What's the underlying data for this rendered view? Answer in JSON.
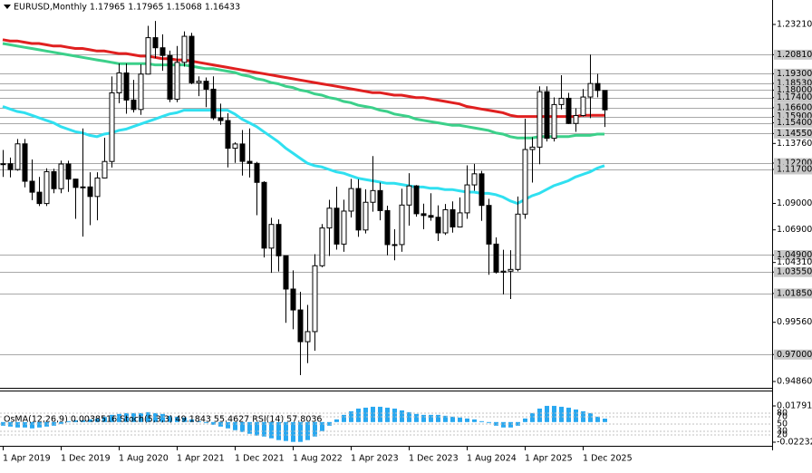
{
  "chart_data": {
    "type": "candlestick",
    "title": "EURUSD,Monthly  1.17965 1.17965 1.15068 1.16433",
    "categories": [
      "1 Apr 2019",
      null,
      null,
      null,
      null,
      null,
      null,
      null,
      "1 Dec 2019",
      null,
      null,
      null,
      null,
      null,
      null,
      null,
      "1 Aug 2020",
      null,
      null,
      null,
      null,
      null,
      null,
      null,
      "1 Apr 2021",
      null,
      null,
      null,
      null,
      null,
      null,
      null,
      "1 Dec 2021",
      null,
      null,
      null,
      null,
      null,
      null,
      null,
      "1 Aug 2022",
      null,
      null,
      null,
      null,
      null,
      null,
      null,
      "1 Apr 2023",
      null,
      null,
      null,
      null,
      null,
      null,
      null,
      "1 Dec 2023",
      null,
      null,
      null,
      null,
      null,
      null,
      null,
      "1 Aug 2024",
      null,
      null,
      null,
      null,
      null,
      null,
      null,
      "1 Apr 2025",
      null,
      null,
      null,
      null,
      null,
      null,
      null,
      "1 Dec 2025",
      null,
      null,
      null
    ],
    "open": [
      1.1214,
      1.1215,
      1.1169,
      1.1373,
      1.1076,
      1.0989,
      1.0899,
      1.1152,
      1.1017,
      1.1213,
      1.1093,
      1.1027,
      1.1031,
      1.0955,
      1.1102,
      1.1233,
      1.1778,
      1.1936,
      1.1721,
      1.1646,
      1.1927,
      1.2216,
      1.2136,
      1.2075,
      1.1728,
      1.202,
      1.2227,
      1.1858,
      1.187,
      1.1807,
      1.1579,
      1.1558,
      1.1338,
      1.1372,
      1.1234,
      1.1218,
      1.1067,
      1.0545,
      1.0733,
      1.0484,
      1.022,
      1.0054,
      0.9802,
      0.9882,
      1.0405,
      1.0705,
      1.0862,
      1.0577,
      1.0839,
      1.1018,
      1.0689,
      1.0909,
      1.1002,
      1.0843,
      1.0573,
      1.0573,
      1.0887,
      1.1039,
      1.0818,
      1.0804,
      1.079,
      1.0666,
      1.085,
      1.0713,
      1.0825,
      1.1047,
      1.1135,
      1.0884,
      1.0577,
      1.0354,
      1.0362,
      1.0376,
      1.0815,
      1.1328,
      1.1347,
      1.1787,
      1.1417,
      1.1685,
      1.1735,
      1.1535,
      1.1598,
      1.1745,
      1.1852,
      1.17965
    ],
    "high": [
      1.1324,
      1.1264,
      1.1412,
      1.1412,
      1.1249,
      1.111,
      1.1179,
      1.1175,
      1.124,
      1.1239,
      1.1095,
      1.1495,
      1.1147,
      1.1147,
      1.1422,
      1.1908,
      1.2011,
      1.2011,
      1.1881,
      1.2004,
      1.231,
      1.2349,
      1.2243,
      1.2113,
      1.215,
      1.2266,
      1.2254,
      1.1909,
      1.19,
      1.1909,
      1.1692,
      1.1616,
      1.1386,
      1.1483,
      1.1495,
      1.123,
      1.1076,
      1.0786,
      1.0773,
      1.0486,
      1.0368,
      1.0198,
      1.0094,
      1.0497,
      1.0736,
      1.0929,
      1.1033,
      1.093,
      1.1095,
      1.1092,
      1.1012,
      1.1276,
      1.1065,
      1.0882,
      1.0695,
      1.1017,
      1.114,
      1.1046,
      1.0898,
      1.0981,
      1.0885,
      1.0895,
      1.0916,
      1.0948,
      1.1202,
      1.1214,
      1.1158,
      1.0937,
      1.063,
      1.0532,
      1.0528,
      1.0955,
      1.1573,
      1.1425,
      1.183,
      1.183,
      1.1742,
      1.1918,
      1.1778,
      1.1655,
      1.1808,
      1.2082,
      1.1929,
      1.17965
    ],
    "low": [
      1.111,
      1.1107,
      1.116,
      1.1028,
      1.0926,
      1.0879,
      1.0879,
      1.0981,
      1.0981,
      1.0992,
      1.0778,
      1.0636,
      1.0727,
      1.0766,
      1.11,
      1.1185,
      1.1696,
      1.1612,
      1.1622,
      1.1603,
      1.1924,
      1.2054,
      1.1953,
      1.1704,
      1.1704,
      1.1986,
      1.1847,
      1.1752,
      1.1664,
      1.1563,
      1.1524,
      1.1186,
      1.1222,
      1.1121,
      1.1106,
      1.0806,
      1.0471,
      1.0349,
      1.0359,
      0.9952,
      0.9901,
      0.9536,
      0.9632,
      0.973,
      1.0393,
      1.0483,
      1.0533,
      1.0516,
      1.0788,
      1.0635,
      1.0662,
      1.0834,
      1.0766,
      1.0488,
      1.0448,
      1.0516,
      1.0724,
      1.0795,
      1.0695,
      1.0762,
      1.0601,
      1.065,
      1.0668,
      1.0709,
      1.0778,
      1.1001,
      1.0761,
      1.0333,
      1.0343,
      1.0178,
      1.0141,
      1.036,
      1.0778,
      1.1065,
      1.1211,
      1.1392,
      1.1392,
      1.1646,
      1.153,
      1.1468,
      1.159,
      1.1577,
      1.1743,
      1.15068
    ],
    "close": [
      1.1215,
      1.1169,
      1.1373,
      1.1076,
      1.0989,
      1.0899,
      1.1152,
      1.1017,
      1.1213,
      1.1093,
      1.1027,
      1.1031,
      1.0955,
      1.1102,
      1.1233,
      1.1778,
      1.1936,
      1.1721,
      1.1646,
      1.1927,
      1.2216,
      1.2136,
      1.2075,
      1.1728,
      1.202,
      1.2227,
      1.1858,
      1.187,
      1.1807,
      1.1579,
      1.1558,
      1.1338,
      1.1372,
      1.1234,
      1.1218,
      1.1067,
      1.0545,
      1.0733,
      1.0484,
      1.022,
      1.0054,
      0.9802,
      0.9882,
      1.0405,
      1.0705,
      1.0862,
      1.0577,
      1.0839,
      1.1018,
      1.0689,
      1.0909,
      1.1002,
      1.0843,
      1.0573,
      1.0573,
      1.0887,
      1.1039,
      1.0818,
      1.0804,
      1.079,
      1.0666,
      1.085,
      1.0713,
      1.0825,
      1.1047,
      1.1135,
      1.0884,
      1.0577,
      1.0354,
      1.0362,
      1.0376,
      1.0815,
      1.1328,
      1.1347,
      1.1787,
      1.1417,
      1.1685,
      1.1735,
      1.1535,
      1.1598,
      1.1745,
      1.1852,
      1.1797,
      1.16433
    ],
    "lines": [
      {
        "color": "#e02020",
        "values": [
          1.22,
          1.219,
          1.219,
          1.218,
          1.217,
          1.217,
          1.216,
          1.215,
          1.215,
          1.214,
          1.213,
          1.213,
          1.212,
          1.211,
          1.211,
          1.21,
          1.209,
          1.209,
          1.208,
          1.207,
          1.207,
          1.206,
          1.205,
          1.205,
          1.204,
          1.204,
          1.203,
          1.202,
          1.201,
          1.2,
          1.199,
          1.198,
          1.197,
          1.196,
          1.195,
          1.194,
          1.193,
          1.192,
          1.191,
          1.19,
          1.189,
          1.188,
          1.187,
          1.186,
          1.185,
          1.184,
          1.183,
          1.182,
          1.181,
          1.18,
          1.179,
          1.178,
          1.178,
          1.177,
          1.176,
          1.176,
          1.175,
          1.174,
          1.174,
          1.173,
          1.172,
          1.171,
          1.17,
          1.169,
          1.167,
          1.166,
          1.165,
          1.164,
          1.163,
          1.162,
          1.16,
          1.159,
          1.159,
          1.159,
          1.159,
          1.159,
          1.159,
          1.159,
          1.159,
          1.159,
          1.16,
          1.16,
          1.16,
          1.16
        ]
      },
      {
        "color": "#3cd08a",
        "values": [
          1.217,
          1.216,
          1.215,
          1.214,
          1.213,
          1.212,
          1.211,
          1.21,
          1.209,
          1.208,
          1.207,
          1.206,
          1.205,
          1.204,
          1.203,
          1.202,
          1.201,
          1.201,
          1.201,
          1.201,
          1.201,
          1.2,
          1.2,
          1.2,
          1.2,
          1.2,
          1.199,
          1.198,
          1.197,
          1.197,
          1.196,
          1.195,
          1.194,
          1.192,
          1.191,
          1.189,
          1.188,
          1.186,
          1.185,
          1.183,
          1.182,
          1.18,
          1.179,
          1.177,
          1.176,
          1.174,
          1.173,
          1.171,
          1.17,
          1.168,
          1.167,
          1.166,
          1.164,
          1.163,
          1.161,
          1.16,
          1.159,
          1.157,
          1.156,
          1.155,
          1.154,
          1.153,
          1.152,
          1.152,
          1.151,
          1.15,
          1.149,
          1.148,
          1.146,
          1.145,
          1.143,
          1.142,
          1.142,
          1.142,
          1.143,
          1.143,
          1.143,
          1.143,
          1.143,
          1.144,
          1.144,
          1.144,
          1.145,
          1.145
        ]
      },
      {
        "color": "#30e0f0",
        "values": [
          1.167,
          1.165,
          1.163,
          1.162,
          1.16,
          1.158,
          1.156,
          1.154,
          1.151,
          1.149,
          1.147,
          1.146,
          1.144,
          1.143,
          1.145,
          1.146,
          1.148,
          1.149,
          1.151,
          1.153,
          1.155,
          1.157,
          1.159,
          1.161,
          1.162,
          1.164,
          1.164,
          1.164,
          1.164,
          1.164,
          1.164,
          1.164,
          1.161,
          1.157,
          1.154,
          1.151,
          1.147,
          1.143,
          1.139,
          1.134,
          1.13,
          1.126,
          1.122,
          1.12,
          1.119,
          1.117,
          1.115,
          1.114,
          1.112,
          1.11,
          1.109,
          1.108,
          1.107,
          1.106,
          1.106,
          1.105,
          1.104,
          1.103,
          1.103,
          1.102,
          1.102,
          1.101,
          1.101,
          1.1,
          1.099,
          1.099,
          1.098,
          1.098,
          1.097,
          1.095,
          1.092,
          1.09,
          1.093,
          1.096,
          1.098,
          1.101,
          1.104,
          1.106,
          1.108,
          1.111,
          1.113,
          1.115,
          1.118,
          1.12
        ]
      }
    ],
    "ylim": [
      0.9486,
      1.2321
    ],
    "yticks": [
      {
        "value": 1.2321,
        "label": "1.23210"
      },
      {
        "value": 1.2081,
        "label": "1.20810"
      },
      {
        "value": 1.193,
        "label": "1.19300"
      },
      {
        "value": 1.1853,
        "label": "1.18530"
      },
      {
        "value": 1.18,
        "label": "1.18000"
      },
      {
        "value": 1.174,
        "label": "1.17400"
      },
      {
        "value": 1.166,
        "label": "1.16600"
      },
      {
        "value": 1.159,
        "label": "1.15900"
      },
      {
        "value": 1.154,
        "label": "1.15400"
      },
      {
        "value": 1.1455,
        "label": "1.14550"
      },
      {
        "value": 1.1376,
        "label": "1.13760"
      },
      {
        "value": 1.122,
        "label": "1.12200"
      },
      {
        "value": 1.117,
        "label": "1.11700"
      },
      {
        "value": 1.09,
        "label": "1.09000"
      },
      {
        "value": 1.069,
        "label": "1.06900"
      },
      {
        "value": 1.049,
        "label": "1.04900"
      },
      {
        "value": 1.0431,
        "label": "1.04310"
      },
      {
        "value": 1.0355,
        "label": "1.03550"
      },
      {
        "value": 1.0185,
        "label": "1.01850"
      },
      {
        "value": 0.9956,
        "label": "0.99560"
      },
      {
        "value": 0.97,
        "label": "0.97000"
      },
      {
        "value": 0.9486,
        "label": "0.94860"
      }
    ],
    "levels": [
      1.2081,
      1.193,
      1.1853,
      1.18,
      1.174,
      1.166,
      1.159,
      1.154,
      1.1455,
      1.122,
      1.117,
      1.049,
      1.0355,
      1.0185,
      0.97
    ],
    "indicator": {
      "type": "bar",
      "title": "OsMA(12,26,9) 0.0038516 Stoch(5,3,3) 49.1843 55.4627 RSI(14) 57.8036",
      "color": "#29a8f0",
      "values": [
        -0.004,
        -0.005,
        -0.006,
        -0.006,
        -0.007,
        -0.006,
        -0.005,
        -0.004,
        -0.002,
        0.001,
        0.002,
        0.002,
        0.003,
        0.004,
        0.006,
        0.008,
        0.009,
        0.01,
        0.01,
        0.01,
        0.011,
        0.01,
        0.009,
        0.007,
        0.006,
        0.005,
        0.003,
        0.001,
        -0.001,
        -0.003,
        -0.005,
        -0.007,
        -0.009,
        -0.011,
        -0.013,
        -0.015,
        -0.016,
        -0.018,
        -0.02,
        -0.021,
        -0.022,
        -0.022,
        -0.02,
        -0.016,
        -0.01,
        -0.004,
        0.003,
        0.008,
        0.012,
        0.015,
        0.016,
        0.017,
        0.017,
        0.016,
        0.015,
        0.013,
        0.011,
        0.009,
        0.008,
        0.008,
        0.008,
        0.007,
        0.006,
        0.005,
        0.004,
        0.003,
        0.001,
        -0.001,
        -0.004,
        -0.006,
        -0.006,
        -0.004,
        0.004,
        0.01,
        0.015,
        0.018,
        0.018,
        0.017,
        0.016,
        0.014,
        0.012,
        0.01,
        0.006,
        0.0038516
      ],
      "ylim": [
        -0.022328,
        0.017912
      ],
      "yticks": [
        0.017912,
        -0.022328
      ],
      "y2lim": [
        0,
        100
      ],
      "y2ticks": [
        80,
        70,
        50,
        30,
        20
      ]
    }
  }
}
